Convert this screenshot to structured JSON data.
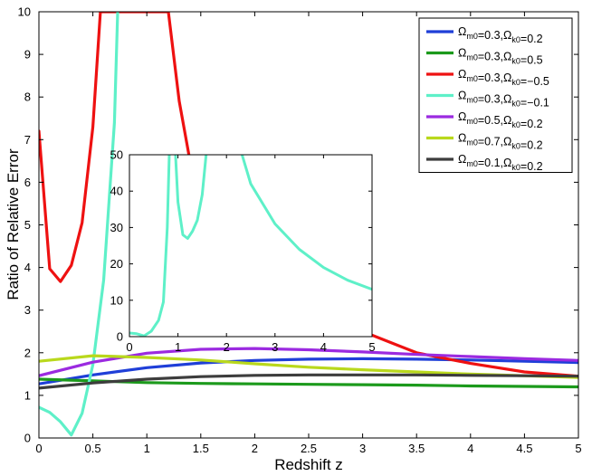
{
  "chart_data": [
    {
      "type": "line",
      "xlabel": "Redshift z",
      "ylabel": "Ratio of Relative Error",
      "xlim": [
        0,
        5
      ],
      "ylim": [
        0,
        10
      ],
      "xticks": [
        "0",
        "0.5",
        "1",
        "1.5",
        "2",
        "2.5",
        "3",
        "3.5",
        "4",
        "4.5",
        "5"
      ],
      "yticks": [
        "0",
        "1",
        "2",
        "3",
        "4",
        "5",
        "6",
        "7",
        "8",
        "9",
        "10"
      ],
      "grid": false,
      "legend_position": "top-right",
      "series": [
        {
          "name": "Ωm0=0.3,Ωk0=0.2",
          "color": "#1f3fd8",
          "x": [
            0,
            0.5,
            1,
            1.5,
            2,
            2.5,
            3,
            3.5,
            4,
            4.5,
            5
          ],
          "y": [
            1.27,
            1.48,
            1.65,
            1.76,
            1.82,
            1.85,
            1.86,
            1.85,
            1.83,
            1.8,
            1.77
          ]
        },
        {
          "name": "Ωm0=0.3,Ωk0=0.5",
          "color": "#1c9a1c",
          "x": [
            0,
            0.5,
            1,
            1.5,
            2,
            2.5,
            3,
            3.5,
            4,
            4.5,
            5
          ],
          "y": [
            1.38,
            1.34,
            1.3,
            1.28,
            1.27,
            1.26,
            1.25,
            1.24,
            1.22,
            1.21,
            1.2
          ]
        },
        {
          "name": "Ωm0=0.3,Ωk0=−0.5",
          "color": "#ee1111",
          "x": [
            0,
            0.1,
            0.2,
            0.3,
            0.4,
            0.5,
            0.57,
            1.2,
            1.3,
            1.4,
            1.5,
            2,
            2.5,
            3,
            3.5,
            4,
            4.5,
            5
          ],
          "y": [
            7.2,
            3.97,
            3.67,
            4.05,
            5.05,
            7.3,
            10.0,
            10.0,
            7.9,
            6.5,
            5.1,
            4.1,
            3.3,
            2.5,
            2.0,
            1.75,
            1.55,
            1.45
          ]
        },
        {
          "name": "Ωm0=0.3,Ωk0=−0.1",
          "color": "#5ef0c8",
          "x": [
            0,
            0.1,
            0.2,
            0.3,
            0.4,
            0.5,
            0.6,
            0.7,
            0.73
          ],
          "y": [
            0.72,
            0.6,
            0.38,
            0.07,
            0.58,
            1.72,
            3.7,
            7.4,
            10.0
          ]
        },
        {
          "name": "Ωm0=0.5,Ωk0=0.2",
          "color": "#9b2ae0",
          "x": [
            0,
            0.5,
            1,
            1.5,
            2,
            2.5,
            3,
            3.5,
            4,
            4.5,
            5
          ],
          "y": [
            1.46,
            1.78,
            1.99,
            2.08,
            2.1,
            2.07,
            2.02,
            1.96,
            1.91,
            1.86,
            1.82
          ]
        },
        {
          "name": "Ωm0=0.7,Ωk0=0.2",
          "color": "#b9d81c",
          "x": [
            0,
            0.5,
            1,
            1.5,
            2,
            2.5,
            3,
            3.5,
            4,
            4.5,
            5
          ],
          "y": [
            1.8,
            1.93,
            1.89,
            1.83,
            1.74,
            1.66,
            1.6,
            1.55,
            1.5,
            1.46,
            1.42
          ]
        },
        {
          "name": "Ωm0=0.1,Ωk0=0.2",
          "color": "#3d3d3d",
          "x": [
            0,
            0.5,
            1,
            1.5,
            2,
            2.5,
            3,
            3.5,
            4,
            4.5,
            5
          ],
          "y": [
            1.17,
            1.29,
            1.38,
            1.44,
            1.47,
            1.48,
            1.48,
            1.48,
            1.47,
            1.46,
            1.45
          ]
        }
      ]
    },
    {
      "type": "line",
      "xlim": [
        0,
        5
      ],
      "ylim": [
        0,
        50
      ],
      "xticks": [
        "0",
        "1",
        "2",
        "3",
        "4",
        "5"
      ],
      "yticks": [
        "0",
        "10",
        "20",
        "30",
        "40",
        "50"
      ],
      "series": [
        {
          "color": "#5ef0c8",
          "segments": [
            {
              "x": [
                0,
                0.15,
                0.3,
                0.45,
                0.6,
                0.7,
                0.78,
                0.82
              ],
              "y": [
                1.0,
                0.8,
                0.2,
                1.5,
                4.5,
                9.5,
                30,
                50
              ]
            },
            {
              "x": [
                0.95,
                1.0,
                1.1,
                1.2,
                1.3,
                1.4,
                1.5,
                1.58
              ],
              "y": [
                50,
                37,
                28,
                27,
                29,
                32,
                39,
                50
              ]
            },
            {
              "x": [
                2.32,
                2.5,
                3,
                3.5,
                4,
                4.5,
                5
              ],
              "y": [
                50,
                42,
                31,
                24,
                19,
                15.5,
                13
              ]
            }
          ]
        }
      ]
    }
  ]
}
